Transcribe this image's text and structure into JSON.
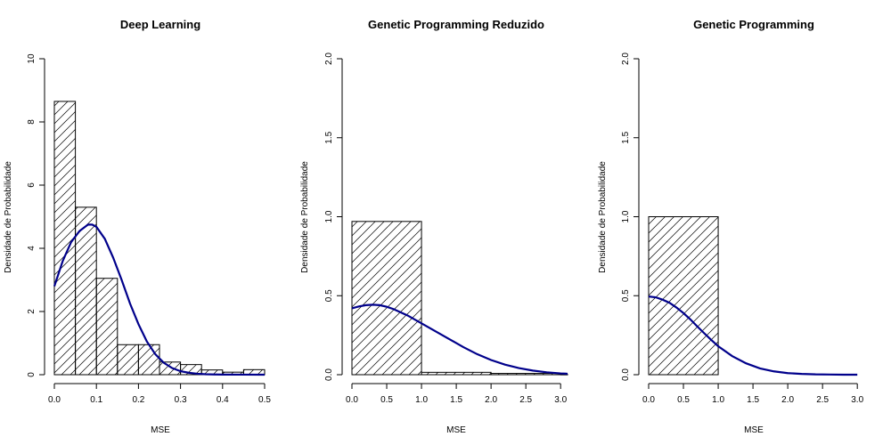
{
  "colors": {
    "curve": "#00008B",
    "bars": "#000000",
    "background": "#ffffff"
  },
  "chart_data": [
    {
      "type": "bar",
      "title": "Deep Learning",
      "xlabel": "MSE",
      "ylabel": "Densidade de Probabilidade",
      "xlim": [
        0,
        0.5
      ],
      "ylim": [
        0,
        10
      ],
      "x_ticks": [
        "0.0",
        "0.1",
        "0.2",
        "0.3",
        "0.4",
        "0.5"
      ],
      "y_ticks": [
        "0",
        "2",
        "4",
        "6",
        "8",
        "10"
      ],
      "bins": [
        {
          "x0": 0.0,
          "x1": 0.05,
          "density": 8.65
        },
        {
          "x0": 0.05,
          "x1": 0.1,
          "density": 5.3
        },
        {
          "x0": 0.1,
          "x1": 0.15,
          "density": 3.05
        },
        {
          "x0": 0.15,
          "x1": 0.2,
          "density": 0.95
        },
        {
          "x0": 0.2,
          "x1": 0.25,
          "density": 0.95
        },
        {
          "x0": 0.25,
          "x1": 0.3,
          "density": 0.4
        },
        {
          "x0": 0.3,
          "x1": 0.35,
          "density": 0.32
        },
        {
          "x0": 0.35,
          "x1": 0.4,
          "density": 0.15
        },
        {
          "x0": 0.4,
          "x1": 0.45,
          "density": 0.08
        },
        {
          "x0": 0.45,
          "x1": 0.5,
          "density": 0.16
        }
      ],
      "curve": {
        "x": [
          0.0,
          0.02,
          0.04,
          0.06,
          0.08,
          0.09,
          0.1,
          0.12,
          0.14,
          0.16,
          0.18,
          0.2,
          0.22,
          0.24,
          0.26,
          0.28,
          0.3,
          0.32,
          0.34,
          0.36,
          0.38,
          0.4,
          0.45,
          0.5
        ],
        "y": [
          2.8,
          3.6,
          4.2,
          4.55,
          4.75,
          4.75,
          4.68,
          4.3,
          3.7,
          3.0,
          2.25,
          1.6,
          1.05,
          0.65,
          0.38,
          0.21,
          0.11,
          0.06,
          0.03,
          0.015,
          0.008,
          0.004,
          0.001,
          0.0
        ]
      }
    },
    {
      "type": "bar",
      "title": "Genetic Programming Reduzido",
      "xlabel": "MSE",
      "ylabel": "Densidade de Probabilidade",
      "xlim": [
        0,
        3.1
      ],
      "ylim": [
        0,
        2
      ],
      "x_ticks": [
        "0.0",
        "0.5",
        "1.0",
        "1.5",
        "2.0",
        "2.5",
        "3.0"
      ],
      "y_ticks": [
        "0.0",
        "0.5",
        "1.0",
        "1.5",
        "2.0"
      ],
      "bins": [
        {
          "x0": 0.0,
          "x1": 1.0,
          "density": 0.97
        },
        {
          "x0": 1.0,
          "x1": 2.0,
          "density": 0.015
        },
        {
          "x0": 2.0,
          "x1": 3.0,
          "density": 0.008
        },
        {
          "x0": 3.0,
          "x1": 3.1,
          "density": 0.002
        }
      ],
      "curve": {
        "x": [
          0.0,
          0.1,
          0.2,
          0.3,
          0.4,
          0.5,
          0.6,
          0.8,
          1.0,
          1.2,
          1.4,
          1.6,
          1.8,
          2.0,
          2.2,
          2.4,
          2.6,
          2.8,
          3.0,
          3.1
        ],
        "y": [
          0.42,
          0.432,
          0.44,
          0.443,
          0.44,
          0.43,
          0.415,
          0.375,
          0.325,
          0.275,
          0.225,
          0.175,
          0.13,
          0.093,
          0.064,
          0.042,
          0.026,
          0.015,
          0.008,
          0.006
        ]
      }
    },
    {
      "type": "bar",
      "title": "Genetic Programming",
      "xlabel": "MSE",
      "ylabel": "Densidade de Probabilidade",
      "xlim": [
        0,
        3.1
      ],
      "ylim": [
        0,
        2
      ],
      "x_ticks": [
        "0.0",
        "0.5",
        "1.0",
        "1.5",
        "2.0",
        "2.5",
        "3.0"
      ],
      "y_ticks": [
        "0.0",
        "0.5",
        "1.0",
        "1.5",
        "2.0"
      ],
      "bins": [
        {
          "x0": 0.0,
          "x1": 1.0,
          "density": 1.0
        }
      ],
      "curve": {
        "x": [
          0.0,
          0.1,
          0.2,
          0.3,
          0.4,
          0.5,
          0.6,
          0.7,
          0.8,
          0.9,
          1.0,
          1.2,
          1.4,
          1.6,
          1.8,
          2.0,
          2.2,
          2.4,
          2.6,
          2.8,
          3.0
        ],
        "y": [
          0.495,
          0.49,
          0.475,
          0.455,
          0.425,
          0.39,
          0.35,
          0.305,
          0.262,
          0.22,
          0.18,
          0.118,
          0.072,
          0.04,
          0.021,
          0.01,
          0.005,
          0.002,
          0.001,
          0.0,
          0.0
        ]
      }
    }
  ]
}
